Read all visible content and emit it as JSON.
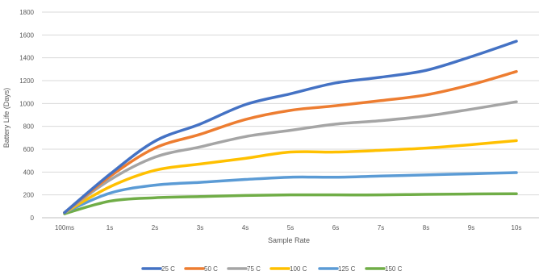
{
  "chart_data": {
    "type": "line",
    "title": "",
    "xlabel": "Sample Rate",
    "ylabel": "Battery Life (Days)",
    "categories": [
      "100ms",
      "1s",
      "2s",
      "3s",
      "4s",
      "5s",
      "6s",
      "7s",
      "8s",
      "9s",
      "10s"
    ],
    "ylim": [
      0,
      1800
    ],
    "yticks": [
      0,
      200,
      400,
      600,
      800,
      1000,
      1200,
      1400,
      1600,
      1800
    ],
    "grid": true,
    "legend_position": "bottom",
    "series": [
      {
        "name": "25 C",
        "color": "#4472C4",
        "values": [
          45,
          380,
          670,
          820,
          990,
          1085,
          1180,
          1230,
          1290,
          1410,
          1545
        ]
      },
      {
        "name": "50 C",
        "color": "#ED7D31",
        "values": [
          45,
          360,
          610,
          730,
          860,
          940,
          980,
          1025,
          1075,
          1165,
          1280
        ]
      },
      {
        "name": "75 C",
        "color": "#A5A5A5",
        "values": [
          45,
          330,
          530,
          620,
          710,
          765,
          820,
          850,
          890,
          950,
          1015
        ]
      },
      {
        "name": "100 C",
        "color": "#FFC000",
        "values": [
          45,
          270,
          415,
          470,
          520,
          575,
          575,
          590,
          610,
          640,
          675
        ]
      },
      {
        "name": "125 C",
        "color": "#5B9BD5",
        "values": [
          45,
          215,
          285,
          310,
          335,
          355,
          355,
          365,
          375,
          385,
          395
        ]
      },
      {
        "name": "150 C",
        "color": "#70AD47",
        "values": [
          35,
          145,
          175,
          185,
          195,
          200,
          200,
          200,
          205,
          208,
          210
        ]
      }
    ]
  }
}
